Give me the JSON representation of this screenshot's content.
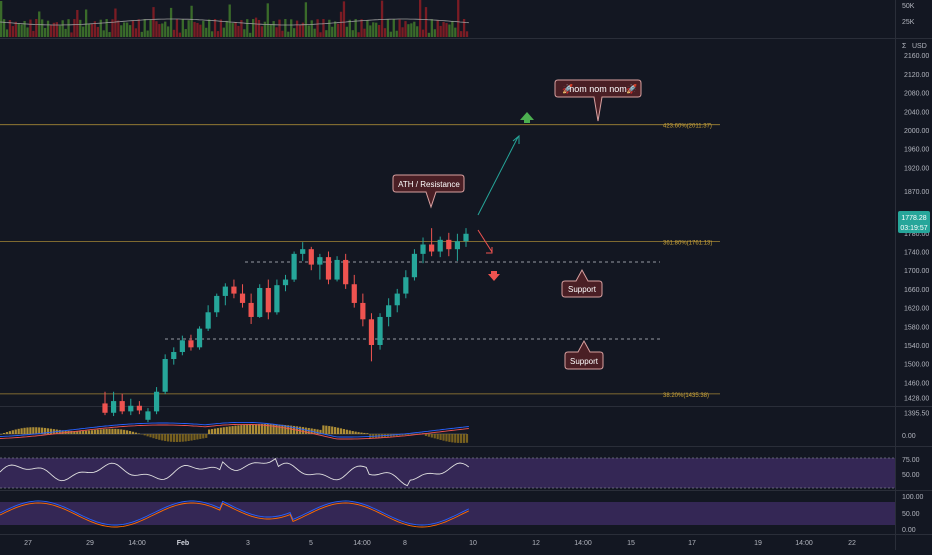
{
  "currency_label": "USD",
  "currency_prefix": "Σ",
  "price_badge": {
    "price": "1778.28",
    "countdown": "03:19:57",
    "color": "#26a69a"
  },
  "volume_ticks": [
    "50K",
    "25K"
  ],
  "price_ticks": [
    "2160.00",
    "2120.00",
    "2080.00",
    "2040.00",
    "2000.00",
    "1960.00",
    "1920.00",
    "1870.00",
    "1820.00",
    "1780.00",
    "1740.00",
    "1700.00",
    "1660.00",
    "1620.00",
    "1580.00",
    "1540.00",
    "1500.00",
    "1460.00",
    "1428.00",
    "1395.50"
  ],
  "macd_ticks": [
    "0.00"
  ],
  "rsi_ticks": [
    "75.00",
    "50.00"
  ],
  "stoch_ticks": [
    "100.00",
    "50.00",
    "0.00"
  ],
  "time_labels": [
    "27",
    "29",
    "14:00",
    "Feb",
    "3",
    "5",
    "14:00",
    "8",
    "10",
    "12",
    "14:00",
    "15",
    "17",
    "19",
    "14:00",
    "22"
  ],
  "fib_levels": [
    {
      "label": "423.60%(2011.37)",
      "value": 2011.37
    },
    {
      "label": "361.80%(1761.13)",
      "value": 1761.13
    },
    {
      "label": "38.20%(1435.38)",
      "value": 1435.38
    }
  ],
  "annotations": {
    "nom": "nom nom nom",
    "ath": "ATH / Resistance",
    "support1": "Support",
    "support2": "Support"
  },
  "colors": {
    "up": "#26a69a",
    "down": "#ef5350",
    "fib": "#c8a23a",
    "macd": "#2962ff",
    "signal": "#ef5350",
    "rsi": "#e0e0e0",
    "band": "#4a2a7a"
  },
  "chart_data": {
    "type": "candlestick",
    "price_range": [
      1380,
      2180
    ],
    "support_levels": [
      1680,
      1517
    ],
    "candles": [
      [
        1415,
        1440,
        1390,
        1395
      ],
      [
        1395,
        1440,
        1388,
        1420
      ],
      [
        1420,
        1436,
        1392,
        1398
      ],
      [
        1398,
        1425,
        1390,
        1410
      ],
      [
        1410,
        1420,
        1392,
        1400
      ],
      [
        1380,
        1405,
        1375,
        1398
      ],
      [
        1398,
        1450,
        1392,
        1440
      ],
      [
        1440,
        1520,
        1435,
        1510
      ],
      [
        1510,
        1535,
        1498,
        1525
      ],
      [
        1525,
        1560,
        1518,
        1550
      ],
      [
        1550,
        1562,
        1528,
        1535
      ],
      [
        1535,
        1580,
        1530,
        1575
      ],
      [
        1575,
        1625,
        1570,
        1610
      ],
      [
        1610,
        1650,
        1600,
        1645
      ],
      [
        1645,
        1672,
        1625,
        1665
      ],
      [
        1665,
        1680,
        1640,
        1650
      ],
      [
        1650,
        1670,
        1620,
        1630
      ],
      [
        1630,
        1650,
        1585,
        1600
      ],
      [
        1600,
        1670,
        1598,
        1662
      ],
      [
        1662,
        1680,
        1595,
        1610
      ],
      [
        1610,
        1680,
        1605,
        1668
      ],
      [
        1668,
        1690,
        1655,
        1680
      ],
      [
        1680,
        1740,
        1675,
        1735
      ],
      [
        1735,
        1760,
        1720,
        1745
      ],
      [
        1745,
        1750,
        1700,
        1712
      ],
      [
        1712,
        1735,
        1680,
        1728
      ],
      [
        1728,
        1740,
        1670,
        1680
      ],
      [
        1680,
        1730,
        1676,
        1722
      ],
      [
        1722,
        1735,
        1660,
        1670
      ],
      [
        1670,
        1690,
        1620,
        1630
      ],
      [
        1630,
        1650,
        1580,
        1595
      ],
      [
        1595,
        1608,
        1505,
        1540
      ],
      [
        1540,
        1608,
        1530,
        1600
      ],
      [
        1600,
        1640,
        1580,
        1625
      ],
      [
        1625,
        1660,
        1610,
        1650
      ],
      [
        1650,
        1700,
        1640,
        1685
      ],
      [
        1685,
        1745,
        1678,
        1735
      ],
      [
        1735,
        1770,
        1715,
        1755
      ],
      [
        1755,
        1790,
        1730,
        1740
      ],
      [
        1740,
        1772,
        1728,
        1765
      ],
      [
        1765,
        1780,
        1730,
        1745
      ],
      [
        1745,
        1778,
        1720,
        1762
      ],
      [
        1762,
        1790,
        1750,
        1778
      ]
    ]
  }
}
